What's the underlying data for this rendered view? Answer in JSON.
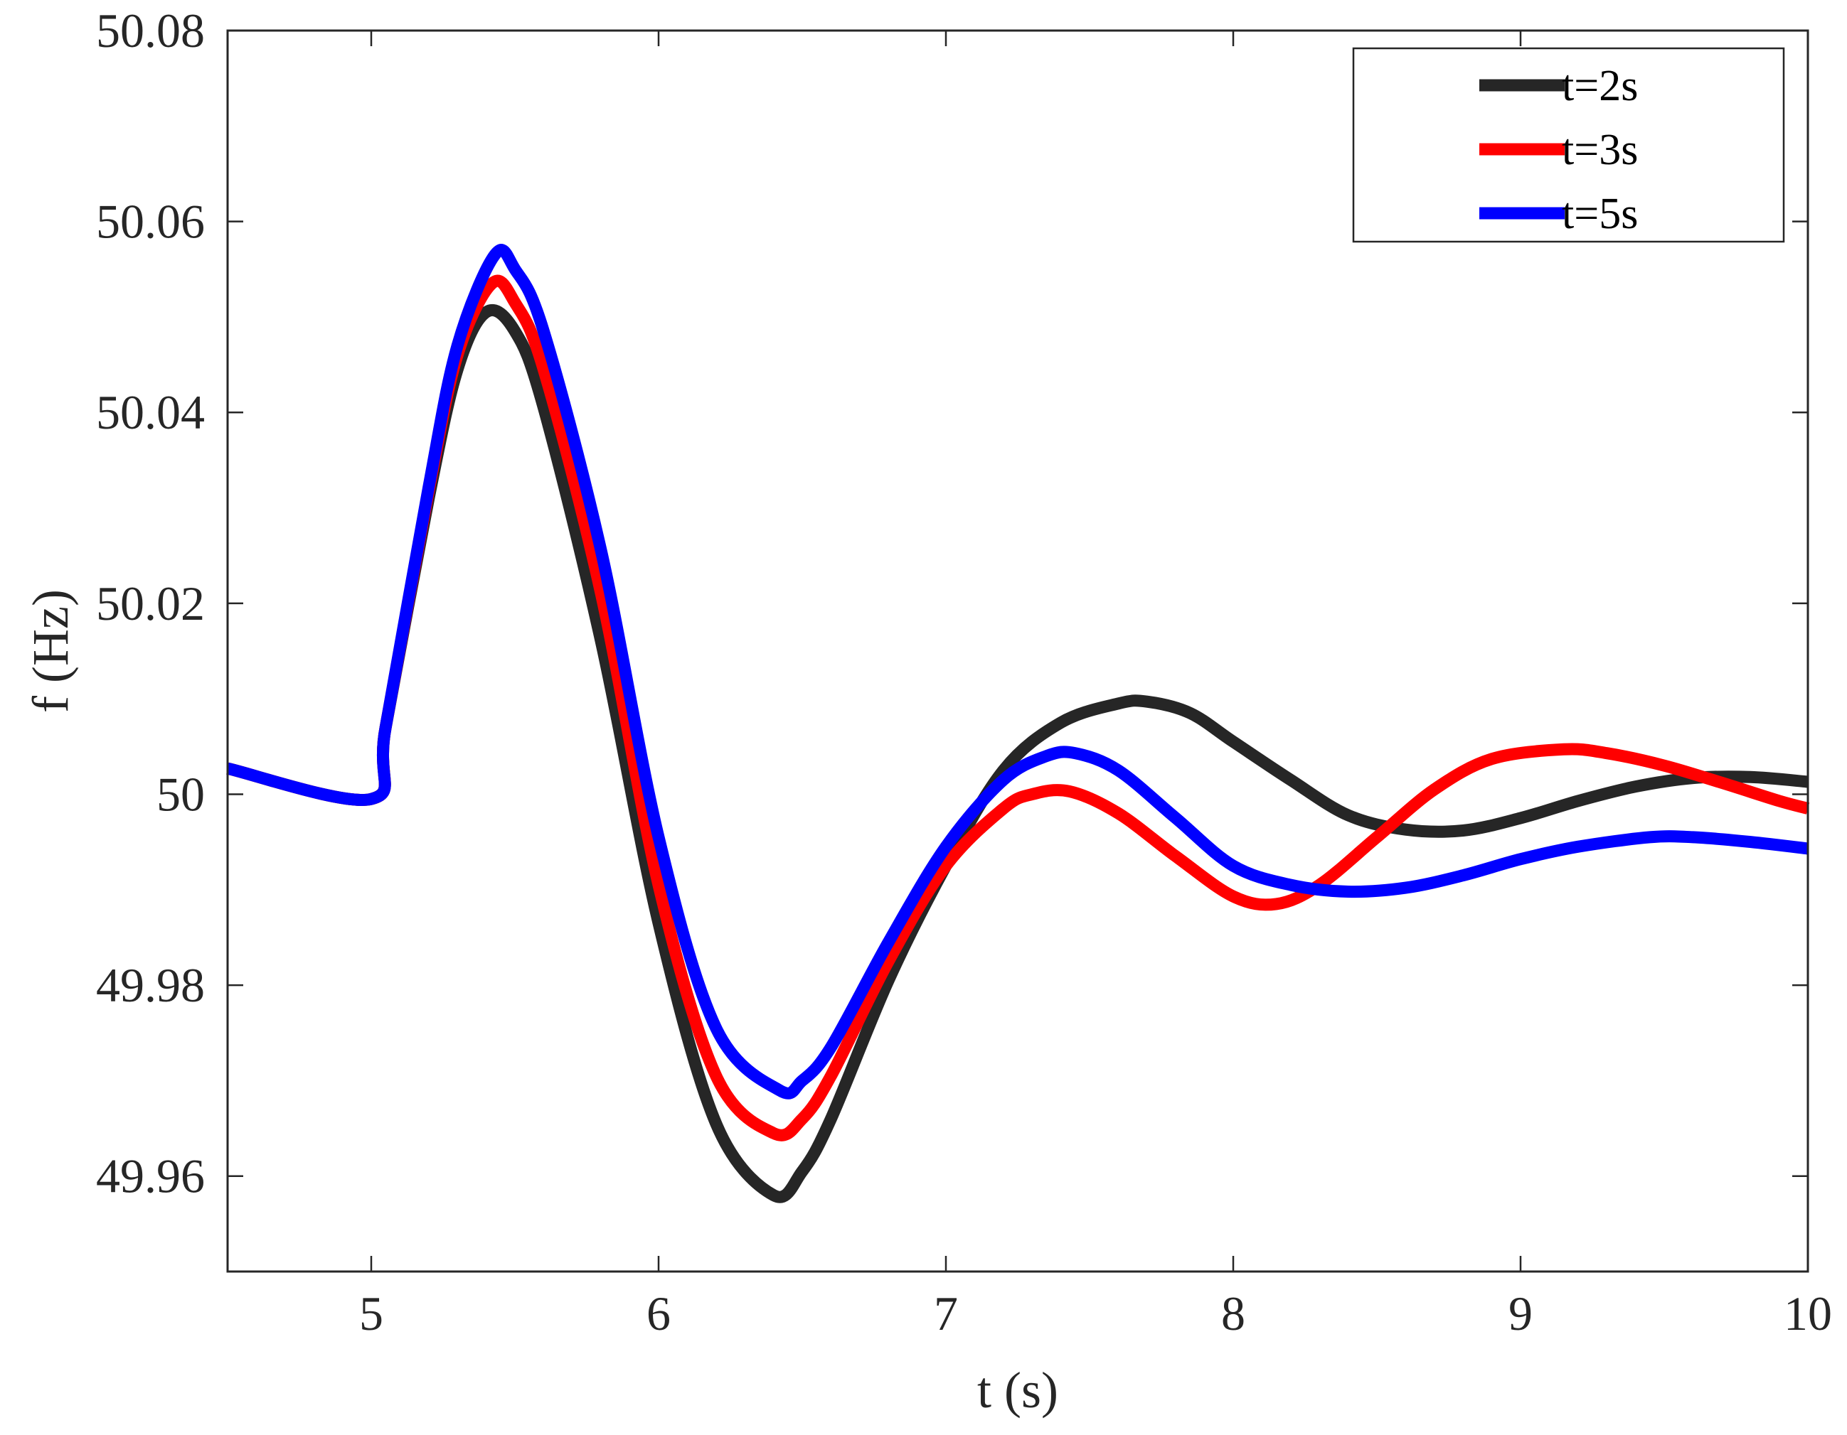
{
  "chart_data": {
    "type": "line",
    "xlabel": "t (s)",
    "ylabel": "f (Hz)",
    "xlim": [
      4.5,
      10
    ],
    "ylim": [
      49.95,
      50.08
    ],
    "xticks": [
      5,
      6,
      7,
      8,
      9,
      10
    ],
    "yticks": [
      49.96,
      49.98,
      50,
      50.02,
      50.04,
      50.06,
      50.08
    ],
    "xtick_labels": [
      "5",
      "6",
      "7",
      "8",
      "9",
      "10"
    ],
    "ytick_labels": [
      "49.96",
      "49.98",
      "50",
      "50.02",
      "50.04",
      "50.06",
      "50.08"
    ],
    "grid": false,
    "legend_position": "top-right",
    "series": [
      {
        "name": "t=2s",
        "color": "#262626",
        "x": [
          4.5,
          5.0,
          5.05,
          5.2,
          5.3,
          5.4,
          5.5,
          5.6,
          5.8,
          6.0,
          6.2,
          6.4,
          6.5,
          6.6,
          6.8,
          7.0,
          7.2,
          7.4,
          7.6,
          7.7,
          7.85,
          8.0,
          8.2,
          8.4,
          8.6,
          8.8,
          9.0,
          9.2,
          9.4,
          9.6,
          9.8,
          10.0
        ],
        "y": [
          50.0027,
          49.9995,
          50.007,
          50.031,
          50.0445,
          50.0505,
          50.0485,
          50.0405,
          50.016,
          49.9865,
          49.9655,
          49.958,
          49.9605,
          49.966,
          49.9805,
          49.9925,
          50.0025,
          50.0075,
          50.0095,
          50.0097,
          50.0085,
          50.0055,
          50.0015,
          49.9978,
          49.9963,
          49.9962,
          49.9975,
          49.9993,
          50.0008,
          50.0017,
          50.0018,
          50.0013
        ]
      },
      {
        "name": "t=3s",
        "color": "#ff0000",
        "x": [
          4.5,
          5.0,
          5.05,
          5.2,
          5.3,
          5.42,
          5.5,
          5.6,
          5.8,
          6.0,
          6.2,
          6.4,
          6.5,
          6.6,
          6.8,
          7.0,
          7.2,
          7.3,
          7.43,
          7.6,
          7.8,
          8.0,
          8.15,
          8.3,
          8.5,
          8.7,
          8.9,
          9.15,
          9.3,
          9.5,
          9.7,
          9.9,
          10.0
        ],
        "y": [
          50.0027,
          49.9995,
          50.007,
          50.0318,
          50.046,
          50.0535,
          50.0515,
          50.0445,
          50.021,
          49.9905,
          49.9705,
          49.9645,
          49.966,
          49.9705,
          49.9825,
          49.9925,
          49.9985,
          50.0,
          50.0003,
          49.998,
          49.9935,
          49.9893,
          49.9885,
          49.9905,
          49.9955,
          50.0005,
          50.0037,
          50.0047,
          50.0043,
          50.003,
          50.0012,
          49.9993,
          49.9985
        ]
      },
      {
        "name": "t=5s",
        "color": "#0000ff",
        "x": [
          4.5,
          5.0,
          5.05,
          5.2,
          5.3,
          5.43,
          5.5,
          5.6,
          5.8,
          6.0,
          6.2,
          6.42,
          6.5,
          6.6,
          6.8,
          7.0,
          7.2,
          7.35,
          7.45,
          7.6,
          7.8,
          8.0,
          8.2,
          8.4,
          8.6,
          8.8,
          9.0,
          9.2,
          9.45,
          9.6,
          9.8,
          10.0
        ],
        "y": [
          50.0027,
          49.9995,
          50.007,
          50.0322,
          50.047,
          50.0565,
          50.055,
          50.0485,
          50.0255,
          49.9955,
          49.9755,
          49.969,
          49.97,
          49.9735,
          49.9845,
          49.9945,
          50.0015,
          50.004,
          50.0043,
          50.0025,
          49.9975,
          49.9925,
          49.9905,
          49.9898,
          49.9902,
          49.9915,
          49.9932,
          49.9945,
          49.9955,
          49.9955,
          49.995,
          49.9943
        ]
      }
    ]
  }
}
